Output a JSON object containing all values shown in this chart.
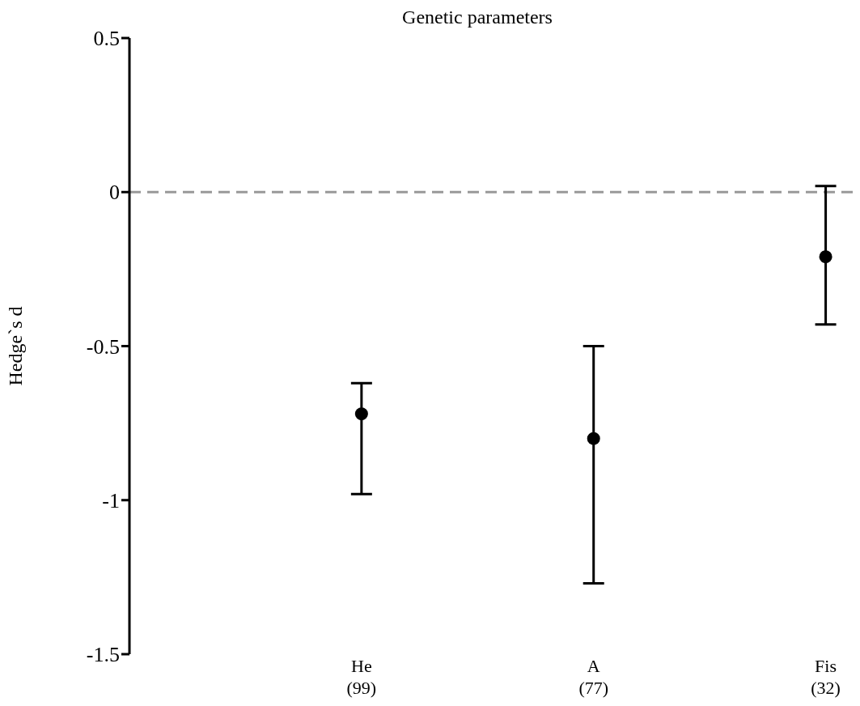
{
  "chart_data": {
    "type": "scatter",
    "title": "Genetic parameters",
    "ylabel": "Hedge`s d",
    "categories": [
      "He\n(99)",
      "A\n(77)",
      "Fis\n(32)"
    ],
    "values": [
      -0.72,
      -0.8,
      -0.21
    ],
    "errors": [
      [
        -0.98,
        -0.62
      ],
      [
        -1.27,
        -0.5
      ],
      [
        -0.43,
        0.02
      ]
    ],
    "color": "#000000",
    "marker": "circle",
    "ylim": [
      -1.5,
      0.5
    ],
    "yticks": [
      -1.5,
      -1,
      -0.5,
      0,
      0.5
    ],
    "ref_lines": [
      {
        "axis": "y",
        "value": 0,
        "color": "#999999",
        "line_style": "dashed"
      }
    ],
    "grid": false,
    "legend": false
  }
}
